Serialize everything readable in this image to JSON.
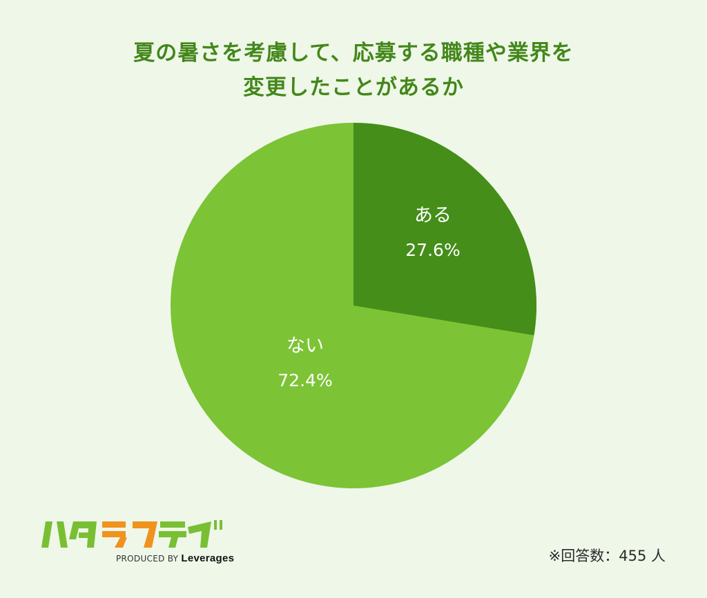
{
  "title": {
    "line1": "夏の暑さを考慮して、応募する職種や業界を",
    "line2": "変更したことがあるか"
  },
  "chart_data": {
    "type": "pie",
    "title": "夏の暑さを考慮して、応募する職種や業界を変更したことがあるか",
    "categories": [
      "ある",
      "ない"
    ],
    "values": [
      27.6,
      72.4
    ],
    "unit": "%",
    "colors": [
      "#448e19",
      "#7cc336"
    ],
    "start_angle_deg": 0,
    "direction": "clockwise",
    "legend": "none (labels inside slices)"
  },
  "labels": {
    "aru": {
      "name": "ある",
      "pct": "27.6%"
    },
    "nai": {
      "name": "ない",
      "pct": "72.4%"
    }
  },
  "brand": {
    "logo_text": "ハタラクティブ",
    "produced_by": "PRODUCED BY",
    "company": "Leverages"
  },
  "footnote": "※回答数：455 人"
}
